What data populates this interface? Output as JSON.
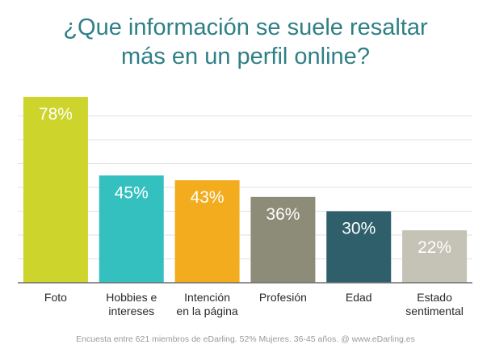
{
  "title": {
    "line1": "¿Que información se suele resaltar",
    "line2": "más en un perfil online?"
  },
  "footer": "Encuesta entre 621 miembros de eDarling. 52% Mujeres. 36-45 años. @ www.eDarling.es",
  "chart_data": {
    "type": "bar",
    "title": "¿Que información se suele resaltar más en un perfil online?",
    "categories": [
      [
        "Foto"
      ],
      [
        "Hobbies e",
        "intereses"
      ],
      [
        "Intención",
        "en la página"
      ],
      [
        "Profesión"
      ],
      [
        "Edad"
      ],
      [
        "Estado",
        "sentimental"
      ]
    ],
    "values": [
      78,
      45,
      43,
      36,
      30,
      22
    ],
    "value_labels": [
      "78%",
      "45%",
      "43%",
      "36%",
      "30%",
      "22%"
    ],
    "colors": [
      "#cdd42c",
      "#35c0c0",
      "#f2ac1e",
      "#8c8c78",
      "#2f5f6b",
      "#c5c3b5"
    ],
    "ylim": [
      0,
      80
    ],
    "grid": true,
    "unit": "%"
  }
}
